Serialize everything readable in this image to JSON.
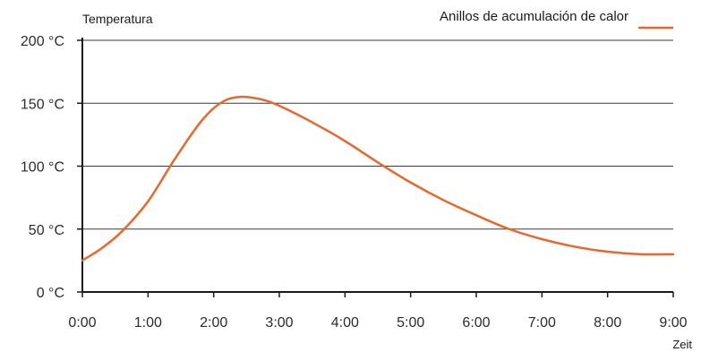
{
  "chart_data": {
    "type": "line",
    "ylabel": "Temperatura",
    "xlabel": "Zeit",
    "ylim": [
      0,
      200
    ],
    "xlim": [
      0,
      9
    ],
    "y_ticks": [
      "0 °C",
      "50 °C",
      "100 °C",
      "150 °C",
      "200 °C"
    ],
    "y_tick_values": [
      0,
      50,
      100,
      150,
      200
    ],
    "x_ticks": [
      "0:00",
      "1:00",
      "2:00",
      "3:00",
      "4:00",
      "5:00",
      "6:00",
      "7:00",
      "8:00",
      "9:00"
    ],
    "x_tick_values": [
      0,
      1,
      2,
      3,
      4,
      5,
      6,
      7,
      8,
      9
    ],
    "grid": "horizontal",
    "legend_position": "top-right",
    "series": [
      {
        "name": "Anillos de acumulación de calor",
        "color": "#e8672b",
        "x": [
          0,
          0.3,
          0.6,
          1.0,
          1.4,
          1.8,
          2.1,
          2.4,
          2.8,
          3.2,
          3.6,
          4.0,
          4.5,
          5.0,
          5.5,
          6.0,
          6.5,
          7.0,
          7.5,
          8.0,
          8.5,
          9.0
        ],
        "y": [
          25,
          35,
          48,
          72,
          105,
          135,
          150,
          155,
          152,
          143,
          132,
          120,
          103,
          87,
          73,
          61,
          50,
          42,
          36,
          32,
          30,
          30
        ]
      }
    ]
  }
}
